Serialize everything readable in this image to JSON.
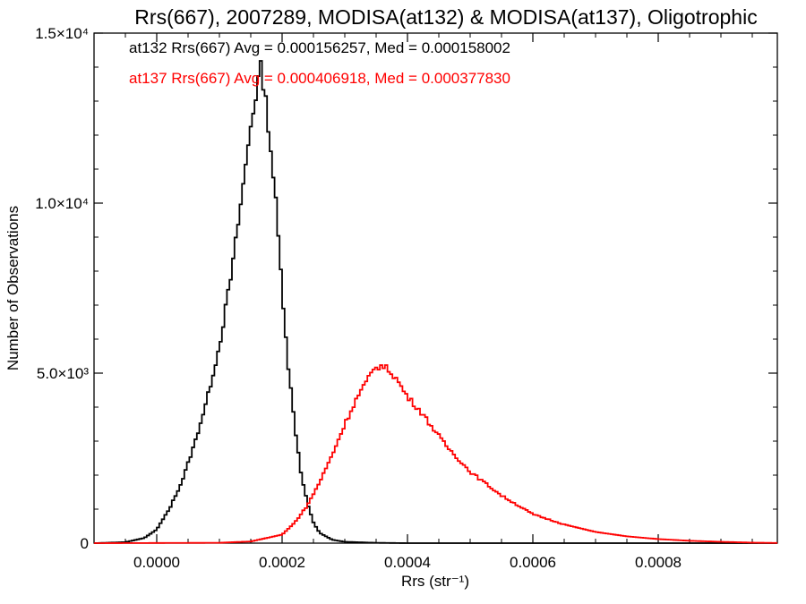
{
  "chart_data": {
    "type": "histogram",
    "title": "Rrs(667), 2007289, MODISA(at132) & MODISA(at137), Oligotrophic",
    "xlabel": "Rrs (str⁻¹)",
    "ylabel": "Number of Observations",
    "xlim": [
      -0.0001,
      0.00099
    ],
    "ylim": [
      0,
      15000
    ],
    "x_ticks": [
      {
        "value": 0.0,
        "label": "0.0000"
      },
      {
        "value": 0.0002,
        "label": "0.0002"
      },
      {
        "value": 0.0004,
        "label": "0.0004"
      },
      {
        "value": 0.0006,
        "label": "0.0006"
      },
      {
        "value": 0.0008,
        "label": "0.0008"
      }
    ],
    "y_ticks": [
      {
        "value": 0,
        "label": "0"
      },
      {
        "value": 5000,
        "label": "5.0×10³"
      },
      {
        "value": 10000,
        "label": "1.0×10⁴"
      },
      {
        "value": 15000,
        "label": "1.5×10⁴"
      }
    ],
    "grid": false,
    "annotations": [
      {
        "text": "at132 Rrs(667) Avg = 0.000156257, Med = 0.000158002",
        "color": "#000000"
      },
      {
        "text": "at137 Rrs(667) Avg = 0.000406918, Med = 0.000377830",
        "color": "#ff0000"
      }
    ],
    "series": [
      {
        "color": "#000000",
        "points": [
          [
            -0.0001,
            0
          ],
          [
            -5e-05,
            30
          ],
          [
            -2e-05,
            150
          ],
          [
            0.0,
            400
          ],
          [
            2e-05,
            1000
          ],
          [
            4e-05,
            1800
          ],
          [
            6e-05,
            2900
          ],
          [
            8e-05,
            4200
          ],
          [
            0.0001,
            5800
          ],
          [
            0.00012,
            8000
          ],
          [
            0.00014,
            10800
          ],
          [
            0.00015,
            12300
          ],
          [
            0.00016,
            13400
          ],
          [
            0.000165,
            14000
          ],
          [
            0.00017,
            13600
          ],
          [
            0.00018,
            12000
          ],
          [
            0.00019,
            10000
          ],
          [
            0.0002,
            7500
          ],
          [
            0.00021,
            5200
          ],
          [
            0.00022,
            3500
          ],
          [
            0.00023,
            2100
          ],
          [
            0.00024,
            1200
          ],
          [
            0.00025,
            600
          ],
          [
            0.00026,
            300
          ],
          [
            0.00028,
            100
          ],
          [
            0.0003,
            40
          ],
          [
            0.00035,
            10
          ],
          [
            0.0004,
            0
          ],
          [
            0.00099,
            0
          ]
        ]
      },
      {
        "color": "#ff0000",
        "points": [
          [
            -0.0001,
            0
          ],
          [
            0.0001,
            10
          ],
          [
            0.00015,
            50
          ],
          [
            0.0002,
            250
          ],
          [
            0.00022,
            600
          ],
          [
            0.00024,
            1100
          ],
          [
            0.00026,
            1800
          ],
          [
            0.00028,
            2600
          ],
          [
            0.0003,
            3500
          ],
          [
            0.00032,
            4300
          ],
          [
            0.00034,
            4900
          ],
          [
            0.00035,
            5200
          ],
          [
            0.00036,
            5200
          ],
          [
            0.00037,
            5100
          ],
          [
            0.00038,
            4900
          ],
          [
            0.0004,
            4300
          ],
          [
            0.00042,
            3900
          ],
          [
            0.00044,
            3400
          ],
          [
            0.00046,
            2900
          ],
          [
            0.00048,
            2500
          ],
          [
            0.0005,
            2100
          ],
          [
            0.00055,
            1400
          ],
          [
            0.0006,
            850
          ],
          [
            0.00065,
            550
          ],
          [
            0.0007,
            330
          ],
          [
            0.00075,
            200
          ],
          [
            0.0008,
            120
          ],
          [
            0.00085,
            70
          ],
          [
            0.0009,
            40
          ],
          [
            0.00095,
            15
          ],
          [
            0.00099,
            5
          ]
        ]
      }
    ]
  }
}
